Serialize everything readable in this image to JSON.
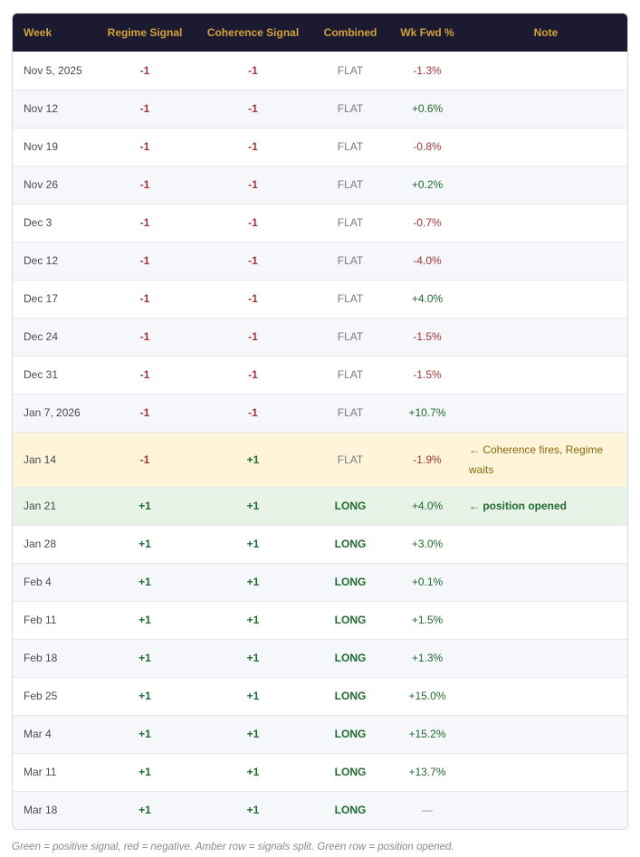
{
  "table": {
    "headers": [
      "Week",
      "Regime Signal",
      "Coherence Signal",
      "Combined",
      "Wk Fwd %",
      "Note"
    ],
    "rows": [
      {
        "week": "Nov 5, 2025",
        "regime": "-1",
        "coherence": "-1",
        "combined": "FLAT",
        "fwd": "-1.3%",
        "note": ""
      },
      {
        "week": "Nov 12",
        "regime": "-1",
        "coherence": "-1",
        "combined": "FLAT",
        "fwd": "+0.6%",
        "note": ""
      },
      {
        "week": "Nov 19",
        "regime": "-1",
        "coherence": "-1",
        "combined": "FLAT",
        "fwd": "-0.8%",
        "note": ""
      },
      {
        "week": "Nov 26",
        "regime": "-1",
        "coherence": "-1",
        "combined": "FLAT",
        "fwd": "+0.2%",
        "note": ""
      },
      {
        "week": "Dec 3",
        "regime": "-1",
        "coherence": "-1",
        "combined": "FLAT",
        "fwd": "-0.7%",
        "note": ""
      },
      {
        "week": "Dec 12",
        "regime": "-1",
        "coherence": "-1",
        "combined": "FLAT",
        "fwd": "-4.0%",
        "note": ""
      },
      {
        "week": "Dec 17",
        "regime": "-1",
        "coherence": "-1",
        "combined": "FLAT",
        "fwd": "+4.0%",
        "note": ""
      },
      {
        "week": "Dec 24",
        "regime": "-1",
        "coherence": "-1",
        "combined": "FLAT",
        "fwd": "-1.5%",
        "note": ""
      },
      {
        "week": "Dec 31",
        "regime": "-1",
        "coherence": "-1",
        "combined": "FLAT",
        "fwd": "-1.5%",
        "note": ""
      },
      {
        "week": "Jan 7, 2026",
        "regime": "-1",
        "coherence": "-1",
        "combined": "FLAT",
        "fwd": "+10.7%",
        "note": ""
      },
      {
        "week": "Jan 14",
        "regime": "-1",
        "coherence": "+1",
        "combined": "FLAT",
        "fwd": "-1.9%",
        "note": "← Coherence fires, Regime waits",
        "highlight": "amber"
      },
      {
        "week": "Jan 21",
        "regime": "+1",
        "coherence": "+1",
        "combined": "LONG",
        "fwd": "+4.0%",
        "note": "← position opened",
        "highlight": "green"
      },
      {
        "week": "Jan 28",
        "regime": "+1",
        "coherence": "+1",
        "combined": "LONG",
        "fwd": "+3.0%",
        "note": ""
      },
      {
        "week": "Feb 4",
        "regime": "+1",
        "coherence": "+1",
        "combined": "LONG",
        "fwd": "+0.1%",
        "note": ""
      },
      {
        "week": "Feb 11",
        "regime": "+1",
        "coherence": "+1",
        "combined": "LONG",
        "fwd": "+1.5%",
        "note": ""
      },
      {
        "week": "Feb 18",
        "regime": "+1",
        "coherence": "+1",
        "combined": "LONG",
        "fwd": "+1.3%",
        "note": ""
      },
      {
        "week": "Feb 25",
        "regime": "+1",
        "coherence": "+1",
        "combined": "LONG",
        "fwd": "+15.0%",
        "note": ""
      },
      {
        "week": "Mar 4",
        "regime": "+1",
        "coherence": "+1",
        "combined": "LONG",
        "fwd": "+15.2%",
        "note": ""
      },
      {
        "week": "Mar 11",
        "regime": "+1",
        "coherence": "+1",
        "combined": "LONG",
        "fwd": "+13.7%",
        "note": ""
      },
      {
        "week": "Mar 18",
        "regime": "+1",
        "coherence": "+1",
        "combined": "LONG",
        "fwd": "—",
        "note": ""
      }
    ]
  },
  "footnote": "Green = positive signal, red = negative. Amber row = signals split. Green row = position opened.",
  "colors": {
    "header_bg": "#1c1a30",
    "header_text": "#d3a23a",
    "negative": "#a23535",
    "positive": "#1f6a2e",
    "amber_row": "#fdf4d9",
    "green_row": "#e6f3e6"
  }
}
